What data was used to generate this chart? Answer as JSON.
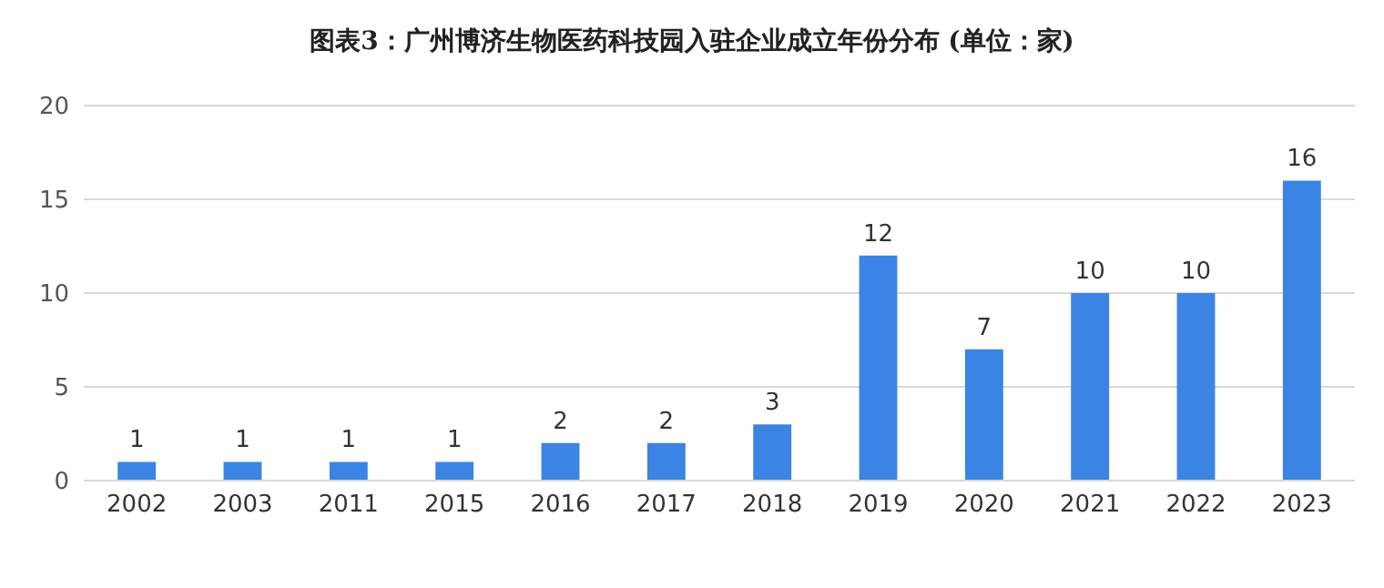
{
  "chart_data": {
    "type": "bar",
    "title": "图表3：广州博济生物医药科技园入驻企业成立年份分布 (单位：家)",
    "categories": [
      "2002",
      "2003",
      "2011",
      "2015",
      "2016",
      "2017",
      "2018",
      "2019",
      "2020",
      "2021",
      "2022",
      "2023"
    ],
    "values": [
      1,
      1,
      1,
      1,
      2,
      2,
      3,
      12,
      7,
      10,
      10,
      16
    ],
    "color": "#3b84e3",
    "ylim": [
      0,
      20
    ],
    "yticks": [
      0,
      5,
      10,
      15,
      20
    ],
    "grid": "y",
    "data_labels": true
  }
}
